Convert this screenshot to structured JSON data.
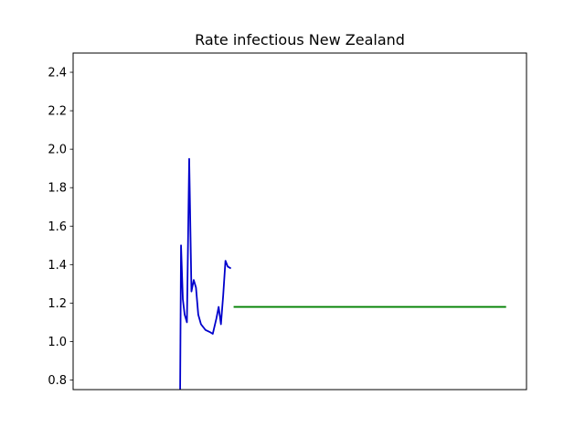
{
  "chart_data": {
    "type": "line",
    "title": "Rate infectious New Zealand",
    "xlabel": "",
    "ylabel": "",
    "xlim": [
      0,
      100
    ],
    "ylim": [
      0.75,
      2.5
    ],
    "yticks": [
      0.8,
      1.0,
      1.2,
      1.4,
      1.6,
      1.8,
      2.0,
      2.2,
      2.4
    ],
    "ytick_labels": [
      "0.8",
      "1.0",
      "1.2",
      "1.4",
      "1.6",
      "1.8",
      "2.0",
      "2.2",
      "2.4"
    ],
    "xticks_visible": false,
    "grid": false,
    "series": [
      {
        "color": "#0000cc",
        "points": [
          [
            23.6,
            0.74
          ],
          [
            23.8,
            1.5
          ],
          [
            24.2,
            1.22
          ],
          [
            24.6,
            1.14
          ],
          [
            25.1,
            1.1
          ],
          [
            25.6,
            1.95
          ],
          [
            26.1,
            1.26
          ],
          [
            26.6,
            1.32
          ],
          [
            27.1,
            1.28
          ],
          [
            27.6,
            1.14
          ],
          [
            28.2,
            1.09
          ],
          [
            29.2,
            1.06
          ],
          [
            30.1,
            1.05
          ],
          [
            30.8,
            1.04
          ],
          [
            31.6,
            1.12
          ],
          [
            32.1,
            1.18
          ],
          [
            32.6,
            1.09
          ],
          [
            33.1,
            1.24
          ],
          [
            33.6,
            1.42
          ],
          [
            34.1,
            1.39
          ],
          [
            34.8,
            1.38
          ]
        ]
      },
      {
        "color": "#008000",
        "points": [
          [
            35.4,
            1.18
          ],
          [
            95.5,
            1.18
          ]
        ]
      }
    ]
  }
}
